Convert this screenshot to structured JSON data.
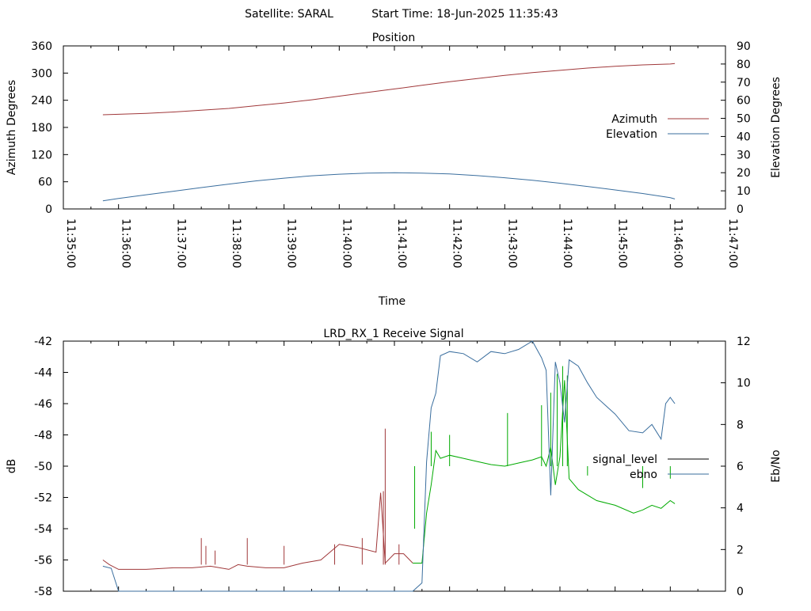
{
  "header": {
    "satellite": "Satellite: SARAL",
    "start_time": "Start Time: 18-Jun-2025 11:35:43"
  },
  "chart_data": [
    {
      "type": "line",
      "title": "Position",
      "xlabel": "Time",
      "ylabel": "Azimuth Degrees",
      "y2label": "Elevation Degrees",
      "x_ticks": [
        "11:35:00",
        "11:36:00",
        "11:37:00",
        "11:38:00",
        "11:39:00",
        "11:40:00",
        "11:41:00",
        "11:42:00",
        "11:43:00",
        "11:44:00",
        "11:45:00",
        "11:46:00",
        "11:47:00"
      ],
      "xlim": [
        "11:35:00",
        "11:47:00"
      ],
      "ylim": [
        0,
        360
      ],
      "y_ticks": [
        "0",
        "60",
        "120",
        "180",
        "240",
        "300",
        "360"
      ],
      "y2lim": [
        0,
        90
      ],
      "y2_ticks": [
        "0",
        "10",
        "20",
        "30",
        "40",
        "50",
        "60",
        "70",
        "80",
        "90"
      ],
      "grid": false,
      "legend": "right",
      "series": [
        {
          "name": "Azimuth",
          "axis": "y1",
          "color": "#a0383a",
          "x": [
            "11:35:43",
            "11:36:00",
            "11:36:30",
            "11:37:00",
            "11:37:30",
            "11:38:00",
            "11:38:30",
            "11:39:00",
            "11:39:30",
            "11:40:00",
            "11:40:30",
            "11:41:00",
            "11:41:30",
            "11:42:00",
            "11:42:30",
            "11:43:00",
            "11:43:30",
            "11:44:00",
            "11:44:30",
            "11:45:00",
            "11:45:30",
            "11:46:00",
            "11:46:05"
          ],
          "values": [
            208,
            209,
            211,
            214,
            218,
            222,
            228,
            234,
            241,
            249,
            257,
            265,
            273,
            281,
            288,
            295,
            301,
            306,
            311,
            315,
            318,
            320,
            321
          ]
        },
        {
          "name": "Elevation",
          "axis": "y2",
          "color": "#3a6e9e",
          "x": [
            "11:35:43",
            "11:36:00",
            "11:36:30",
            "11:37:00",
            "11:37:30",
            "11:38:00",
            "11:38:30",
            "11:39:00",
            "11:39:30",
            "11:40:00",
            "11:40:30",
            "11:41:00",
            "11:41:30",
            "11:42:00",
            "11:42:30",
            "11:43:00",
            "11:43:30",
            "11:44:00",
            "11:44:30",
            "11:45:00",
            "11:45:30",
            "11:46:00",
            "11:46:05"
          ],
          "values": [
            4.5,
            5.8,
            7.8,
            9.8,
            11.8,
            13.7,
            15.5,
            17.0,
            18.3,
            19.2,
            19.8,
            20.0,
            19.8,
            19.3,
            18.4,
            17.2,
            15.8,
            14.2,
            12.4,
            10.5,
            8.5,
            6.2,
            5.5
          ]
        }
      ]
    },
    {
      "type": "line",
      "title": "LRD_RX_1 Receive Signal",
      "xlabel": "",
      "ylabel": "dB",
      "y2label": "Eb/No",
      "xlim": [
        "11:35:00",
        "11:47:00"
      ],
      "ylim": [
        -58,
        -42
      ],
      "y_ticks": [
        "-58",
        "-56",
        "-54",
        "-52",
        "-50",
        "-48",
        "-46",
        "-44",
        "-42"
      ],
      "y2lim": [
        0,
        12
      ],
      "y2_ticks": [
        "0",
        "2",
        "4",
        "6",
        "8",
        "10",
        "12"
      ],
      "grid": false,
      "legend": "right",
      "series": [
        {
          "name": "signal_level",
          "axis": "y1",
          "color": "#000000",
          "legend_color": "#000000",
          "red_color": "#a0383a",
          "green_color": "#00aa00",
          "x": [
            "11:35:43",
            "11:35:50",
            "11:36:00",
            "11:36:30",
            "11:37:00",
            "11:37:20",
            "11:37:40",
            "11:38:00",
            "11:38:10",
            "11:38:20",
            "11:38:40",
            "11:39:00",
            "11:39:20",
            "11:39:40",
            "11:39:50",
            "11:40:00",
            "11:40:20",
            "11:40:40",
            "11:40:45",
            "11:40:50",
            "11:41:00",
            "11:41:10",
            "11:41:20",
            "11:41:30",
            "11:41:35",
            "11:41:40",
            "11:41:45",
            "11:41:50",
            "11:42:00",
            "11:42:15",
            "11:42:30",
            "11:42:45",
            "11:43:00",
            "11:43:15",
            "11:43:30",
            "11:43:40",
            "11:43:45",
            "11:43:50",
            "11:43:55",
            "11:44:00",
            "11:44:05",
            "11:44:10",
            "11:44:20",
            "11:44:40",
            "11:45:00",
            "11:45:20",
            "11:45:30",
            "11:45:40",
            "11:45:50",
            "11:46:00",
            "11:46:05"
          ],
          "values": [
            -56.0,
            -56.3,
            -56.6,
            -56.6,
            -56.5,
            -56.5,
            -56.4,
            -56.6,
            -56.3,
            -56.4,
            -56.5,
            -56.5,
            -56.2,
            -56.0,
            -55.5,
            -55.0,
            -55.2,
            -55.5,
            -51.7,
            -56.2,
            -55.6,
            -55.6,
            -56.2,
            -56.2,
            -53.0,
            -51.2,
            -49.0,
            -49.5,
            -49.3,
            -49.5,
            -49.7,
            -49.9,
            -50.0,
            -49.8,
            -49.6,
            -49.4,
            -50.0,
            -48.8,
            -51.2,
            -49.4,
            -44.5,
            -50.8,
            -51.5,
            -52.2,
            -52.5,
            -53.0,
            -52.8,
            -52.5,
            -52.7,
            -52.2,
            -52.4
          ],
          "spikes": [
            {
              "x": "11:37:30",
              "value": -54.6
            },
            {
              "x": "11:37:35",
              "value": -55.1
            },
            {
              "x": "11:37:45",
              "value": -55.4
            },
            {
              "x": "11:38:20",
              "value": -54.6
            },
            {
              "x": "11:39:00",
              "value": -55.1
            },
            {
              "x": "11:39:55",
              "value": -55.0
            },
            {
              "x": "11:40:25",
              "value": -54.6
            },
            {
              "x": "11:40:48",
              "value": -51.6
            },
            {
              "x": "11:40:50",
              "value": -47.6
            },
            {
              "x": "11:41:05",
              "value": -55.0
            },
            {
              "x": "11:41:22",
              "value": -54.0
            },
            {
              "x": "11:41:40",
              "value": -47.8
            },
            {
              "x": "11:42:00",
              "value": -48.0
            },
            {
              "x": "11:43:03",
              "value": -46.6
            },
            {
              "x": "11:43:40",
              "value": -46.1
            },
            {
              "x": "11:43:50",
              "value": -45.3
            },
            {
              "x": "11:43:57",
              "value": -44.1
            },
            {
              "x": "11:44:03",
              "value": -43.6
            },
            {
              "x": "11:44:08",
              "value": -44.2
            },
            {
              "x": "11:44:30",
              "value": -50.6
            },
            {
              "x": "11:45:30",
              "value": -51.4
            },
            {
              "x": "11:46:00",
              "value": -50.8
            }
          ]
        },
        {
          "name": "ebno",
          "axis": "y2",
          "color": "#3a6e9e",
          "x": [
            "11:35:43",
            "11:35:52",
            "11:36:00",
            "11:36:10",
            "11:41:20",
            "11:41:30",
            "11:41:35",
            "11:41:40",
            "11:41:45",
            "11:41:50",
            "11:42:00",
            "11:42:15",
            "11:42:30",
            "11:42:45",
            "11:43:00",
            "11:43:15",
            "11:43:30",
            "11:43:40",
            "11:43:45",
            "11:43:50",
            "11:43:55",
            "11:44:00",
            "11:44:05",
            "11:44:10",
            "11:44:20",
            "11:44:30",
            "11:44:40",
            "11:45:00",
            "11:45:15",
            "11:45:30",
            "11:45:40",
            "11:45:50",
            "11:45:55",
            "11:46:00",
            "11:46:05"
          ],
          "values": [
            1.2,
            1.1,
            0.0,
            0.0,
            0.0,
            0.4,
            6.2,
            8.8,
            9.5,
            11.3,
            11.5,
            11.4,
            11.0,
            11.5,
            11.4,
            11.6,
            12.0,
            11.2,
            10.6,
            4.6,
            11.0,
            10.0,
            8.1,
            11.1,
            10.8,
            10.0,
            9.3,
            8.5,
            7.7,
            7.6,
            8.0,
            7.3,
            9.0,
            9.3,
            9.0
          ]
        }
      ]
    }
  ]
}
